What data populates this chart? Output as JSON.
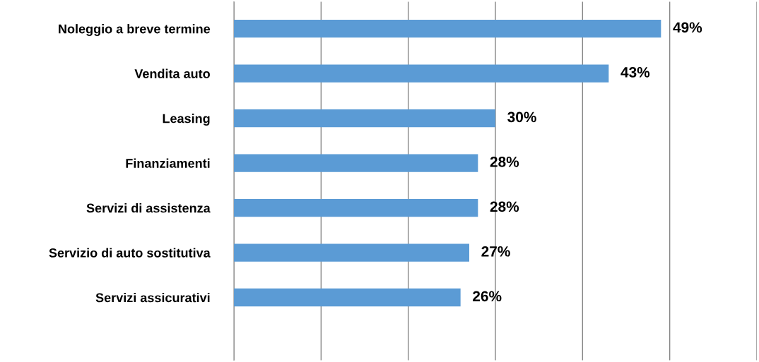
{
  "chart_data": {
    "type": "bar",
    "orientation": "horizontal",
    "categories": [
      "Noleggio a breve termine",
      "Vendita auto",
      "Leasing",
      "Finanziamenti",
      "Servizi di assistenza",
      "Servizio di auto sostitutiva",
      "Servizi assicurativi"
    ],
    "values": [
      49,
      43,
      30,
      28,
      28,
      27,
      26
    ],
    "value_labels": [
      "49%",
      "43%",
      "30%",
      "28%",
      "28%",
      "27%",
      "26%"
    ],
    "color": "#5b9bd5",
    "xlim": [
      0,
      60
    ],
    "xticks": [
      {
        "value": 0,
        "label": null
      },
      {
        "value": 10,
        "label": null
      },
      {
        "value": 20,
        "label": null
      },
      {
        "value": 30,
        "label": null
      },
      {
        "value": 40,
        "label": null
      },
      {
        "value": 50,
        "label": null
      },
      {
        "value": 60,
        "label": null
      }
    ],
    "grid": "x",
    "tick_labels": "y"
  }
}
